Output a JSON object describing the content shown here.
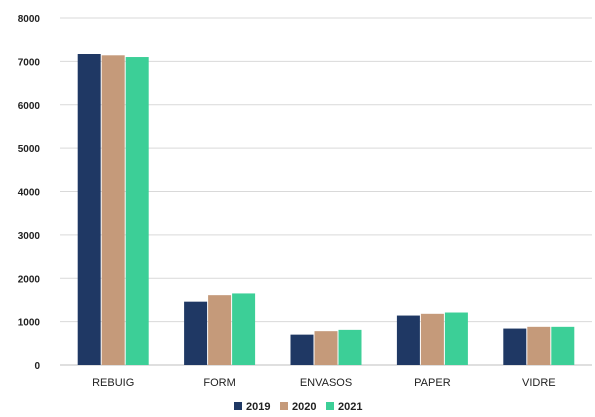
{
  "chart_data": {
    "type": "bar",
    "title": "",
    "xlabel": "",
    "ylabel": "",
    "categories": [
      "REBUIG",
      "FORM",
      "ENVASOS",
      "PAPER",
      "VIDRE"
    ],
    "ylim": [
      0,
      8000
    ],
    "yticks": [
      "0",
      "1000",
      "2000",
      "3000",
      "4000",
      "5000",
      "6000",
      "7000",
      "8000"
    ],
    "grid": true,
    "legend_position": "bottom",
    "series": [
      {
        "name": "2019",
        "color": "#1f3864",
        "values": [
          7170,
          1460,
          700,
          1140,
          840
        ]
      },
      {
        "name": "2020",
        "color": "#c59a7a",
        "values": [
          7140,
          1610,
          780,
          1180,
          880
        ]
      },
      {
        "name": "2021",
        "color": "#3ccf97",
        "values": [
          7100,
          1650,
          810,
          1210,
          880
        ]
      }
    ]
  }
}
